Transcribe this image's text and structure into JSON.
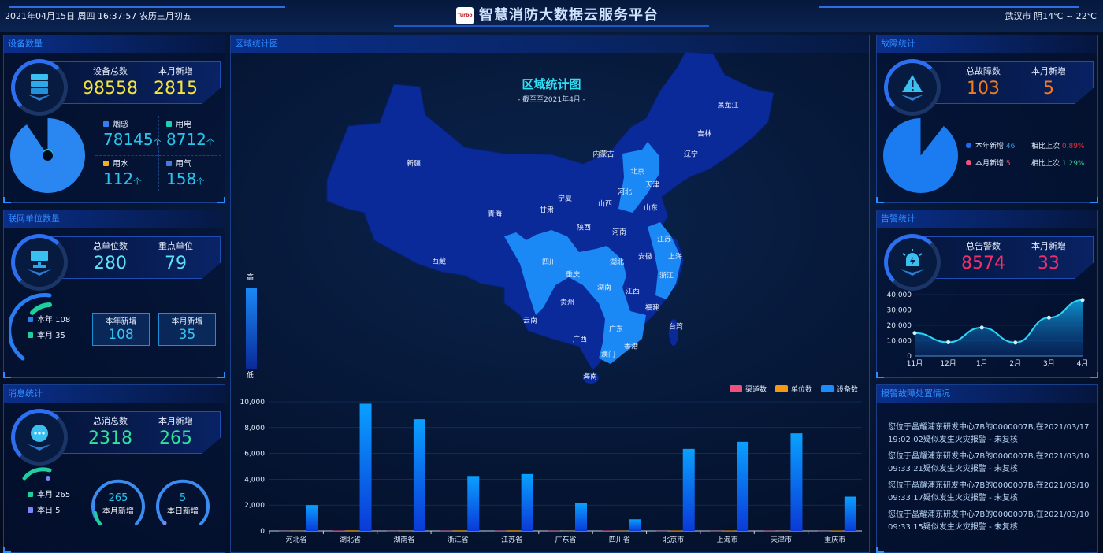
{
  "header": {
    "datetime": "2021年04月15日 周四 16:37:57 农历三月初五",
    "logo_text": "Turbo",
    "title": "智慧消防大数据云服务平台",
    "weather": "武汉市 阴14℃ ~ 22℃"
  },
  "devices": {
    "title": "设备数量",
    "total_label": "设备总数",
    "total": "98558",
    "month_label": "本月新增",
    "month": "2815",
    "unit": "个",
    "items": [
      {
        "label": "烟感",
        "value": "78145",
        "color": "#2f7ff0"
      },
      {
        "label": "用电",
        "value": "8712",
        "color": "#1ecfb4"
      },
      {
        "label": "用水",
        "value": "112",
        "color": "#f0b020"
      },
      {
        "label": "用气",
        "value": "158",
        "color": "#4a78e0"
      }
    ]
  },
  "units": {
    "title": "联网单位数量",
    "total_label": "总单位数",
    "total": "280",
    "key_label": "重点单位",
    "key": "79",
    "legend": [
      {
        "label": "本年 108",
        "color": "#2a7cf2"
      },
      {
        "label": "本月 35",
        "color": "#1ecfa0"
      }
    ],
    "year_label": "本年新增",
    "year": "108",
    "month_label": "本月新增",
    "month": "35"
  },
  "messages": {
    "title": "消息统计",
    "total_label": "总消息数",
    "total": "2318",
    "month_label": "本月新增",
    "month": "265",
    "legend": [
      {
        "label": "本月 265",
        "color": "#1ecfa0"
      },
      {
        "label": "本日 5",
        "color": "#7a86f5"
      }
    ],
    "gauges": [
      {
        "value": "265",
        "label": "本月新增"
      },
      {
        "value": "5",
        "label": "本日新增"
      }
    ]
  },
  "map": {
    "panel_title": "区域统计图",
    "title": "区域统计图",
    "subtitle": "- 截至至2021年4月 -",
    "legend_high": "高",
    "legend_low": "低",
    "provinces": [
      "新疆",
      "西藏",
      "青海",
      "甘肃",
      "宁夏",
      "内蒙古",
      "黑龙江",
      "吉林",
      "辽宁",
      "北京",
      "天津",
      "河北",
      "山西",
      "山东",
      "陕西",
      "河南",
      "江苏",
      "安徽",
      "上海",
      "湖北",
      "四川",
      "重庆",
      "浙江",
      "湖南",
      "江西",
      "贵州",
      "福建",
      "云南",
      "台湾",
      "广东",
      "广西",
      "香港",
      "澳门",
      "海南"
    ],
    "highlighted": [
      "北京",
      "天津",
      "河北",
      "江苏",
      "上海",
      "浙江",
      "四川",
      "重庆",
      "湖北",
      "湖南",
      "广东"
    ]
  },
  "chart_data": [
    {
      "type": "bar",
      "categories": [
        "河北省",
        "湖北省",
        "湖南省",
        "浙江省",
        "江苏省",
        "广东省",
        "四川省",
        "北京市",
        "上海市",
        "天津市",
        "重庆市"
      ],
      "series": [
        {
          "name": "渠道数",
          "color": "#f0507a",
          "values": [
            10,
            30,
            10,
            20,
            20,
            20,
            30,
            10,
            10,
            20,
            10
          ]
        },
        {
          "name": "单位数",
          "color": "#f59a10",
          "values": [
            10,
            40,
            10,
            40,
            40,
            10,
            20,
            30,
            30,
            10,
            30
          ]
        },
        {
          "name": "设备数",
          "color": "#1a8cff",
          "values": [
            2000,
            9850,
            8650,
            4250,
            4400,
            2150,
            900,
            6350,
            6900,
            7550,
            2650
          ]
        }
      ],
      "ylim": [
        0,
        10000
      ],
      "yticks": [
        "0",
        "2,000",
        "4,000",
        "6,000",
        "8,000",
        "10,000"
      ],
      "legend": "top-right",
      "grid": true
    },
    {
      "type": "area",
      "categories": [
        "11月",
        "12月",
        "1月",
        "2月",
        "3月",
        "4月"
      ],
      "values": [
        15000,
        9000,
        18500,
        8800,
        25000,
        36500
      ],
      "ylim": [
        0,
        40000
      ],
      "yticks": [
        "0",
        "10,000",
        "20,000",
        "30,000",
        "40,000"
      ],
      "grid": true
    }
  ],
  "faults": {
    "title": "故障统计",
    "total_label": "总故障数",
    "total": "103",
    "month_label": "本月新增",
    "month": "5",
    "rows": [
      {
        "label": "本年新增",
        "value": "46",
        "color": "#1a6cf0",
        "cmp_label": "相比上次",
        "cmp": "0.89%",
        "cmp_color": "#e0303a"
      },
      {
        "label": "本月新增",
        "value": "5",
        "color": "#f0507a",
        "cmp_label": "相比上次",
        "cmp": "1.29%",
        "cmp_color": "#2ed08a"
      }
    ]
  },
  "alarms": {
    "title": "告警统计",
    "total_label": "总告警数",
    "total": "8574",
    "month_label": "本月新增",
    "month": "33"
  },
  "handling": {
    "title": "报警故障处置情况",
    "items": [
      "您位于晶耀浦东研发中心7B的0000007B,在2021/03/17 19:02:02疑似发生火灾报警 - 未复核",
      "您位于晶耀浦东研发中心7B的0000007B,在2021/03/10 09:33:21疑似发生火灾报警 - 未复核",
      "您位于晶耀浦东研发中心7B的0000007B,在2021/03/10 09:33:17疑似发生火灾报警 - 未复核",
      "您位于晶耀浦东研发中心7B的0000007B,在2021/03/10 09:33:15疑似发生火灾报警 - 未复核"
    ]
  }
}
